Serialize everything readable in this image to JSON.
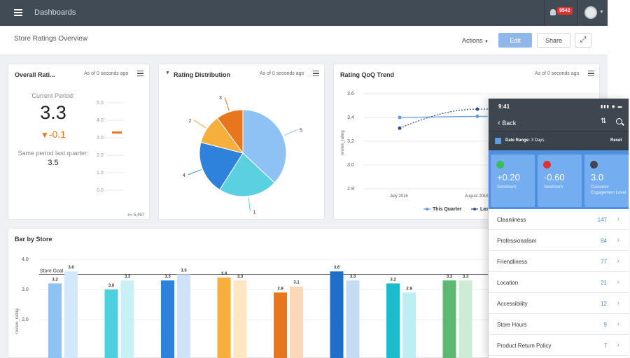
{
  "topbar": {
    "title": "Dashboards",
    "notification_count": "9542"
  },
  "subheader": {
    "title": "Store Ratings Overview",
    "actions_label": "Actions",
    "edit_label": "Edit",
    "share_label": "Share"
  },
  "overall": {
    "title": "Overall Rati...",
    "as_of": "As of 0 seconds ago",
    "current_label": "Current Period:",
    "current_value": "3.3",
    "delta": "-0.1",
    "previous_label": "Same period last quarter:",
    "previous_value": "3.5",
    "scale": [
      "5.0",
      "4.0",
      "3.0",
      "2.0",
      "1.0",
      "0.0"
    ],
    "footer": "n= 5,497"
  },
  "distribution": {
    "title": "Rating Distribution",
    "as_of": "As of 0 seconds ago",
    "slices": [
      {
        "label": "5",
        "value": 37,
        "color": "#8ec2f5"
      },
      {
        "label": "1",
        "value": 22,
        "color": "#5bd0e0"
      },
      {
        "label": "4",
        "value": 20,
        "color": "#2f82dc"
      },
      {
        "label": "2",
        "value": 11,
        "color": "#f6ae3c"
      },
      {
        "label": "3",
        "value": 10,
        "color": "#e8761c"
      }
    ]
  },
  "trend": {
    "title": "Rating QoQ Trend",
    "as_of": "As of 0 seconds ago",
    "ylabel": "review_rating",
    "yticks": [
      "3.6",
      "3.4",
      "3.2",
      "3.0",
      "2.8"
    ],
    "xticks": [
      "July 2016",
      "August 2016"
    ],
    "legend": [
      "This Quarter",
      "Last Quarter"
    ]
  },
  "bar_by_store": {
    "title": "Bar by Store",
    "ylabel": "review_rating",
    "yticks": [
      "4.0",
      "3.0",
      "2.0"
    ],
    "goal_label": "Store Goal",
    "goal_value": 3.5,
    "groups": [
      {
        "color": "#8ec2f5",
        "light": "#d4e8fb",
        "values": [
          3.2,
          3.6
        ]
      },
      {
        "color": "#4cd0de",
        "light": "#c8f0f5",
        "values": [
          3.0,
          3.3
        ]
      },
      {
        "color": "#2f82dc",
        "light": "#cfe3f8",
        "values": [
          3.3,
          3.5
        ]
      },
      {
        "color": "#f6ae3c",
        "light": "#fde6c2",
        "values": [
          3.4,
          3.3
        ]
      },
      {
        "color": "#e8761c",
        "light": "#fbd9b8",
        "values": [
          2.9,
          3.1
        ]
      },
      {
        "color": "#1f6fc9",
        "light": "#c4dbf4",
        "values": [
          3.6,
          3.3
        ]
      },
      {
        "color": "#1cbccc",
        "light": "#bdeef4",
        "values": [
          3.2,
          2.9
        ]
      },
      {
        "color": "#5cb872",
        "light": "#cdebd5",
        "values": [
          3.3,
          3.3
        ]
      }
    ]
  },
  "mobile": {
    "time": "9:41",
    "back_label": "Back",
    "date_range_label": "Date Range:",
    "date_range_value": "3 Days",
    "reset_label": "Reset",
    "tiles": [
      {
        "value": "+0.20",
        "label": "Sentiment",
        "icon": "thumbs-up-icon",
        "icon_color": "#3fba5a"
      },
      {
        "value": "-0.60",
        "label": "Sentiment",
        "icon": "thumbs-down-icon",
        "icon_color": "#e0322f"
      },
      {
        "value": "3.0",
        "label": "Customer Engagement Level",
        "icon": "star-icon",
        "icon_color": "#3e4750"
      }
    ],
    "rows": [
      {
        "label": "Cleanliness",
        "value": "147"
      },
      {
        "label": "Professionalism",
        "value": "84"
      },
      {
        "label": "Friendliness",
        "value": "77"
      },
      {
        "label": "Location",
        "value": "21"
      },
      {
        "label": "Accessibility",
        "value": "12"
      },
      {
        "label": "Store Hours",
        "value": "9"
      },
      {
        "label": "Product Return Policy",
        "value": "7"
      }
    ]
  }
}
